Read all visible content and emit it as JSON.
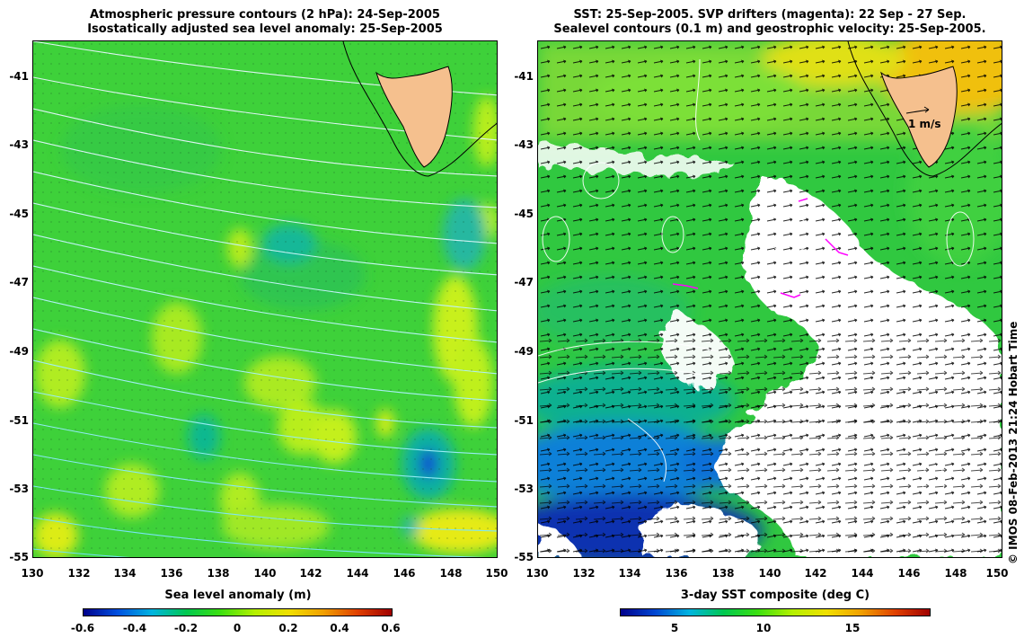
{
  "left_panel": {
    "title_line1": "Atmospheric pressure contours (2 hPa): 24-Sep-2005",
    "title_line2": "Isostatically adjusted sea level anomaly: 25-Sep-2005",
    "colorbar_title": "Sea level anomaly (m)",
    "colorbar_ticks": [
      "-0.6",
      "-0.4",
      "-0.2",
      "0",
      "0.2",
      "0.4",
      "0.6"
    ],
    "colorbar_colors": [
      "#00008b",
      "#0050e0",
      "#00b4e0",
      "#00c850",
      "#3ce010",
      "#b4f000",
      "#f0e000",
      "#f0a000",
      "#e04000",
      "#a00000"
    ]
  },
  "right_panel": {
    "title_line1": "SST: 25-Sep-2005. SVP drifters (magenta): 22 Sep - 27 Sep.",
    "title_line2": "Sealevel contours (0.1 m) and geostrophic velocity: 25-Sep-2005.",
    "colorbar_title": "3-day SST composite (deg C)",
    "colorbar_ticks": [
      "5",
      "10",
      "15"
    ],
    "colorbar_colors": [
      "#00008b",
      "#0046d2",
      "#00b4e0",
      "#00c850",
      "#3ce010",
      "#b4f000",
      "#f0e000",
      "#f0a000",
      "#e04000",
      "#a00000"
    ],
    "velocity_scale_label": "1 m/s"
  },
  "axes": {
    "x_ticks": [
      "130",
      "132",
      "134",
      "136",
      "138",
      "140",
      "142",
      "144",
      "146",
      "148",
      "150"
    ],
    "y_ticks": [
      "-41",
      "-43",
      "-45",
      "-47",
      "-49",
      "-51",
      "-53",
      "-55"
    ]
  },
  "credit": "© IMOS 08-Feb-2013 21:24 Hobart Time",
  "colors": {
    "land": "#f5c08e",
    "cloud": "#ffffff",
    "drifter": "#ff00ff"
  }
}
